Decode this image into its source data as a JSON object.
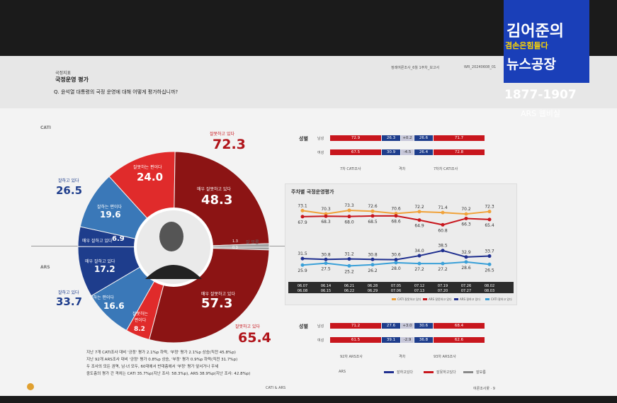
{
  "logo": {
    "line1": "김어준의",
    "line2": "겸손은힘들다",
    "line3": "뉴스공장",
    "phone": "1877-1907",
    "ars": "ARS 웹비실"
  },
  "header": {
    "left_small": "국정지표",
    "title": "국정운영 평가",
    "question": "Q. 윤석열 대통령의 국정 운영에 대해 어떻게 평가하십니까?",
    "right_small": "정례여론조사_6월 1주차_보고서",
    "doc_id": "WR_20240608_01"
  },
  "donut": {
    "cati_label": "CATI",
    "ars_label": "ARS",
    "cati_negative_total_label": "잘못하고 있다",
    "cati_negative_total": "72.3",
    "cati_very_bad_label": "매우 잘못하고 있다",
    "cati_very_bad": "48.3",
    "cati_bad_label": "잘못하는 편이다",
    "cati_bad": "24.0",
    "cati_positive_total_label": "잘하고 있다",
    "cati_positive_total": "26.5",
    "cati_good_label": "잘하는 편이다",
    "cati_good": "19.6",
    "cati_very_good_label": "매우 잘하고 있다",
    "cati_very_good": "6.9",
    "ars_very_good_label": "매우 잘하고 있다",
    "ars_very_good": "17.2",
    "ars_good_label": "잘하는 편이다",
    "ars_good": "16.6",
    "ars_positive_total_label": "잘하고 있다",
    "ars_positive_total": "33.7",
    "ars_bad_label": "잘못하는 편이다",
    "ars_bad": "8.2",
    "ars_very_bad_label": "매우 잘못하고 있다",
    "ars_very_bad": "57.3",
    "ars_negative_total_label": "잘못하고 있다",
    "ars_negative_total": "65.4",
    "unknown_label": "잘 모름",
    "unknown_cati": "1.3",
    "unknown_ars": "0.9"
  },
  "notes": [
    "지난 7개 CATI조사 대비 '긍정' 평가 2.1%p 하락, '부정' 평가 2.1%p 상승(직전 45.8%p)",
    "지난 92개 ARS조사 대비 '긍정' 평가 0.8%p 상승, '부정' 평가 0.9%p 하락(직전 31.7%p)",
    "두 조사의 모든 권역, 남·녀 모두, 60대에서 반대층에서 '부정' 평가 앞서거나 우세",
    "중도층의 평가 간 격차는 CATI 35.7%p(지난 조사: 58.3%p), ARS 38.9%p(지난 조사: 42.8%p)"
  ],
  "gender_top": {
    "title": "성별",
    "rows": [
      {
        "label": "남성",
        "v": [
          "72.9",
          "26.3",
          "+0.2",
          "26.6",
          "71.7"
        ]
      },
      {
        "label": "여성",
        "v": [
          "67.5",
          "30.9",
          "-4.5",
          "26.4",
          "72.8"
        ]
      }
    ],
    "foot": [
      "7차 CATI조사",
      "격차",
      "7차차 CATI조사"
    ]
  },
  "gender_bottom": {
    "title": "성별",
    "rows": [
      {
        "label": "남성",
        "v": [
          "71.2",
          "27.6",
          "+3.0",
          "30.6",
          "68.4"
        ]
      },
      {
        "label": "여성",
        "v": [
          "61.5",
          "39.1",
          "-2.9",
          "36.8",
          "62.6"
        ]
      }
    ],
    "foot": [
      "92차 ARS조사",
      "격차",
      "93차 ARS조사"
    ]
  },
  "chart_data": {
    "type": "line",
    "title": "주차별 국정운영평가",
    "categories": [
      "06.07\n06.08",
      "06.14\n06.15",
      "06.21\n06.22",
      "06.28\n06.29",
      "07.05\n07.06",
      "07.12\n07.13",
      "07.19\n07.20",
      "07.26\n07.27",
      "08.02\n08.03"
    ],
    "category_top": [
      "06.07",
      "06.14",
      "06.21",
      "06.28",
      "07.05",
      "07.12",
      "07.19",
      "07.26",
      "08.02"
    ],
    "category_bottom": [
      "06.08",
      "06.15",
      "06.22",
      "06.29",
      "07.06",
      "07.13",
      "07.20",
      "07.27",
      "08.03"
    ],
    "series": [
      {
        "name": "CATI 잘못하고 있다",
        "color": "#f0a23a",
        "values": [
          73.1,
          70.3,
          73.3,
          72.6,
          70.6,
          72.2,
          71.4,
          70.2,
          72.3
        ]
      },
      {
        "name": "ARS 잘못하고 있다",
        "color": "#c8161d",
        "values": [
          67.9,
          68.3,
          68.0,
          68.5,
          68.6,
          64.9,
          60.8,
          66.3,
          65.4
        ]
      },
      {
        "name": "ARS 잘하고 있다",
        "color": "#1f2f8f",
        "values": [
          31.5,
          30.8,
          31.2,
          30.8,
          30.6,
          34.0,
          38.5,
          32.9,
          33.7
        ]
      },
      {
        "name": "CATI 잘하고 있다",
        "color": "#3aa0d8",
        "values": [
          25.9,
          27.5,
          25.2,
          26.2,
          28.0,
          27.2,
          27.2,
          28.6,
          26.5
        ]
      }
    ],
    "ylim": [
      15,
      85
    ],
    "legend_position": "bottom"
  },
  "bottom_legend": [
    "ARS",
    "잘하고있다",
    "잘못하고있다",
    "잘모름"
  ],
  "footer": {
    "center": "CATI & ARS",
    "right": "여론조사꽃 · 9"
  },
  "colors": {
    "dark_red": "#8c1414",
    "red": "#e02b2b",
    "blue": "#3a78b8",
    "navy": "#1e3d8c"
  }
}
